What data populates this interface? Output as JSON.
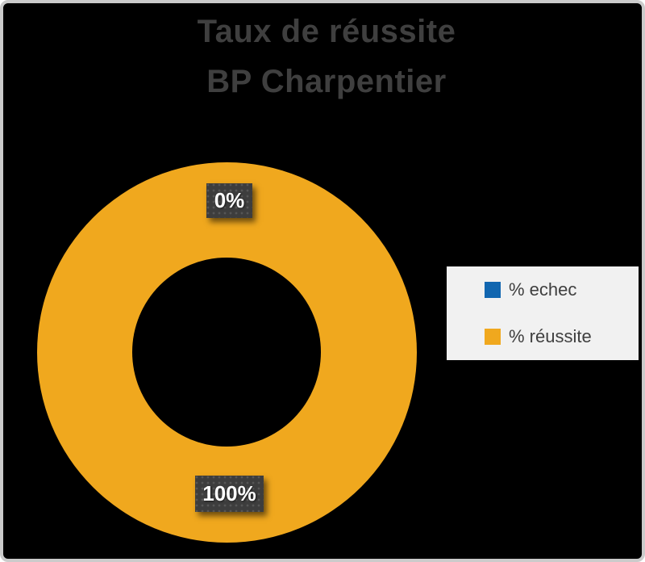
{
  "window": {
    "background": "#000000",
    "border_color": "#CBCBCB"
  },
  "title": {
    "line1": "Taux de réussite",
    "line2": "BP Charpentier",
    "color": "#3F3F3F"
  },
  "donut": {
    "ring_color": "#F0A81E",
    "hole_color": "#000000",
    "label_echec": "0%",
    "label_reussite": "100%",
    "label_box_color": "#3D3D3D"
  },
  "legend": {
    "background": "#F1F1F1",
    "items": [
      {
        "label": "% echec",
        "color": "#1166B0"
      },
      {
        "label": "% réussite",
        "color": "#F0A81E"
      }
    ]
  },
  "chart_data": {
    "type": "pie",
    "subtype": "donut",
    "title": "Taux de réussite BP Charpentier",
    "categories": [
      "% echec",
      "% réussite"
    ],
    "values": [
      0,
      100
    ],
    "unit": "%",
    "colors": [
      "#1166B0",
      "#F0A81E"
    ],
    "data_labels": [
      "0%",
      "100%"
    ],
    "legend_position": "right",
    "background": "#000000",
    "hole_ratio": 0.5
  }
}
